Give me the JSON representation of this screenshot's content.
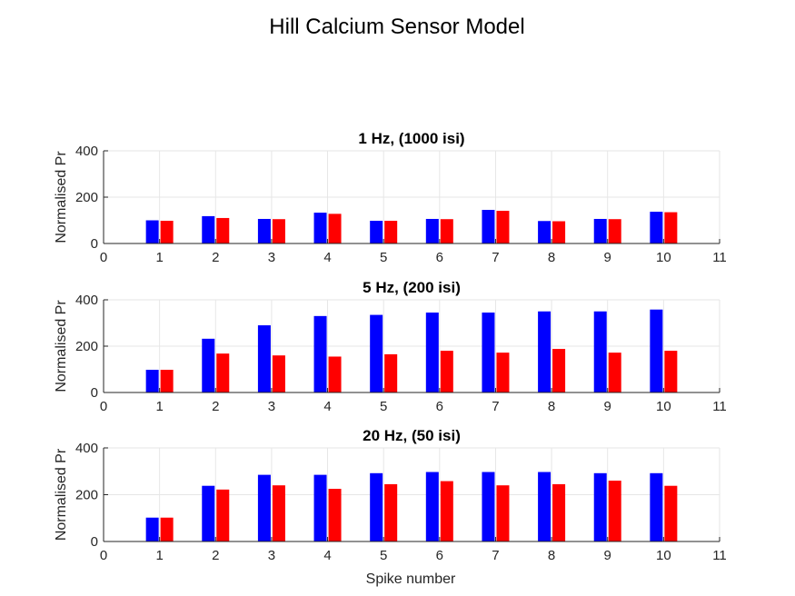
{
  "figure": {
    "title": "Hill Calcium Sensor Model",
    "xlabel": "Spike number"
  },
  "colors": {
    "series_a": "#0000ff",
    "series_b": "#ff0000",
    "grid": "#e6e6e6",
    "axis": "#262626"
  },
  "chart_data": [
    {
      "type": "bar",
      "title": "1 Hz,  (1000 isi)",
      "ylabel": "Normalised Pr",
      "xlabel": "",
      "xlim": [
        0,
        11
      ],
      "ylim": [
        0,
        400
      ],
      "xticks": [
        0,
        1,
        2,
        3,
        4,
        5,
        6,
        7,
        8,
        9,
        10,
        11
      ],
      "yticks": [
        0,
        200,
        400
      ],
      "grid": true,
      "categories": [
        1,
        2,
        3,
        4,
        5,
        6,
        7,
        8,
        9,
        10
      ],
      "series": [
        {
          "color": "#0000ff",
          "values": [
            100,
            118,
            106,
            133,
            98,
            106,
            145,
            97,
            106,
            137
          ]
        },
        {
          "color": "#ff0000",
          "values": [
            98,
            110,
            105,
            128,
            98,
            105,
            141,
            96,
            105,
            135
          ]
        }
      ]
    },
    {
      "type": "bar",
      "title": "5 Hz,  (200 isi)",
      "ylabel": "Normalised Pr",
      "xlabel": "",
      "xlim": [
        0,
        11
      ],
      "ylim": [
        0,
        400
      ],
      "xticks": [
        0,
        1,
        2,
        3,
        4,
        5,
        6,
        7,
        8,
        9,
        10,
        11
      ],
      "yticks": [
        0,
        200,
        400
      ],
      "grid": true,
      "categories": [
        1,
        2,
        3,
        4,
        5,
        6,
        7,
        8,
        9,
        10
      ],
      "series": [
        {
          "color": "#0000ff",
          "values": [
            98,
            232,
            290,
            330,
            335,
            345,
            345,
            350,
            350,
            358
          ]
        },
        {
          "color": "#ff0000",
          "values": [
            98,
            168,
            160,
            155,
            165,
            180,
            172,
            188,
            172,
            180
          ]
        }
      ]
    },
    {
      "type": "bar",
      "title": "20 Hz,  (50 isi)",
      "ylabel": "Normalised Pr",
      "xlabel": "Spike number",
      "xlim": [
        0,
        11
      ],
      "ylim": [
        0,
        400
      ],
      "xticks": [
        0,
        1,
        2,
        3,
        4,
        5,
        6,
        7,
        8,
        9,
        10,
        11
      ],
      "yticks": [
        0,
        200,
        400
      ],
      "grid": true,
      "categories": [
        1,
        2,
        3,
        4,
        5,
        6,
        7,
        8,
        9,
        10
      ],
      "series": [
        {
          "color": "#0000ff",
          "values": [
            102,
            238,
            285,
            285,
            292,
            297,
            297,
            297,
            292,
            292
          ]
        },
        {
          "color": "#ff0000",
          "values": [
            102,
            222,
            240,
            225,
            245,
            258,
            240,
            245,
            260,
            238
          ]
        }
      ]
    }
  ]
}
